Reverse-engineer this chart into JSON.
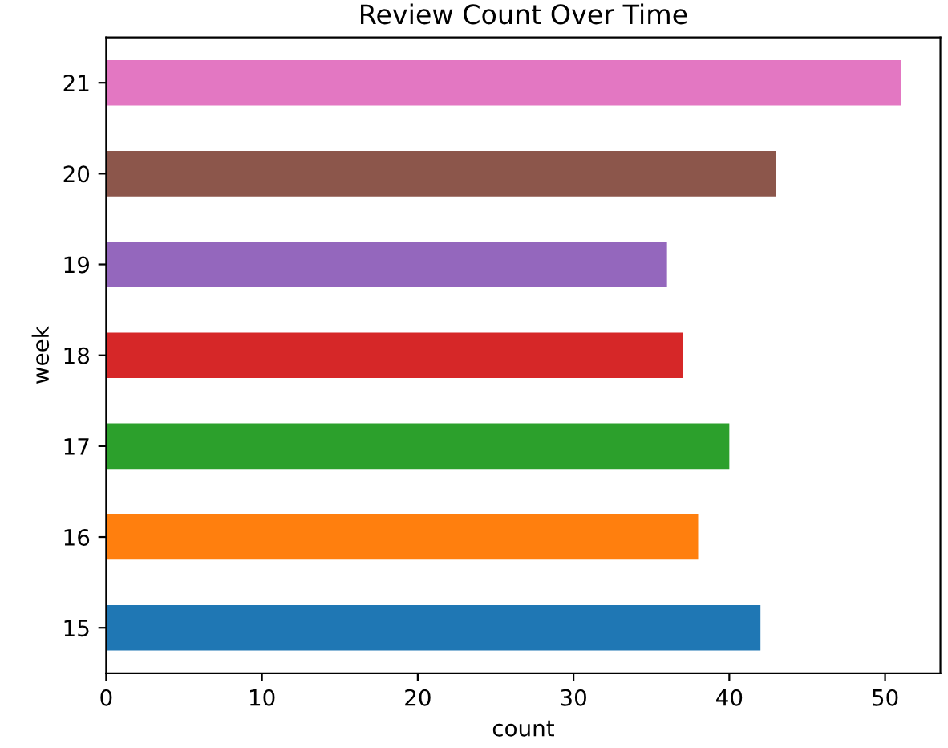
{
  "chart_data": {
    "type": "bar",
    "orientation": "horizontal",
    "title": "Review Count Over Time",
    "xlabel": "count",
    "ylabel": "week",
    "categories": [
      "21",
      "20",
      "19",
      "18",
      "17",
      "16",
      "15"
    ],
    "values": [
      51,
      43,
      36,
      37,
      40,
      38,
      42
    ],
    "colors": [
      "#e377c2",
      "#8c564b",
      "#9467bd",
      "#d62728",
      "#2ca02c",
      "#ff7f0e",
      "#1f77b4"
    ],
    "xlim": [
      0,
      53.55
    ],
    "xticks": [
      0,
      10,
      20,
      30,
      40,
      50
    ],
    "grid": false,
    "legend": false
  }
}
